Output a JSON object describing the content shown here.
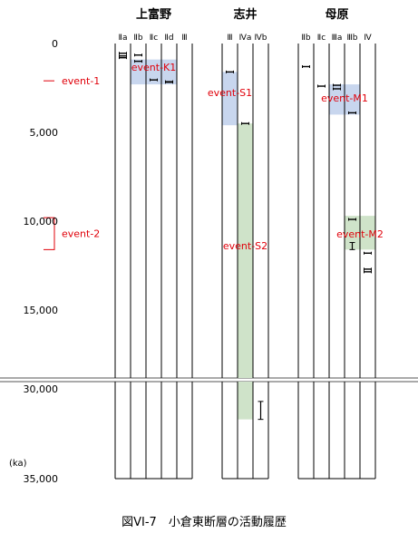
{
  "chart_data": {
    "type": "interval",
    "caption": "図VI-7　小倉東断層の活動履歴",
    "y_unit_label": "(ka)",
    "y_ticks_upper": [
      "0",
      "5,000",
      "10,000",
      "15,000"
    ],
    "y_ticks_lower": [
      "30,000",
      "35,000"
    ],
    "y_tick_values_upper": [
      0,
      5000,
      10000,
      15000
    ],
    "y_tick_values_lower": [
      30000,
      35000
    ],
    "axis_break": {
      "from": 19000,
      "to": 29000
    },
    "sites": [
      {
        "name": "上富野",
        "columns": [
          "Ⅱa",
          "Ⅱb",
          "Ⅱc",
          "Ⅱd",
          "Ⅲ"
        ]
      },
      {
        "name": "志井",
        "columns": [
          "Ⅲ",
          "Ⅳa",
          "Ⅳb"
        ]
      },
      {
        "name": "母原",
        "columns": [
          "Ⅱb",
          "Ⅱc",
          "Ⅲa",
          "Ⅲb",
          "Ⅳ"
        ]
      }
    ],
    "events": [
      {
        "label": "event-1",
        "range": [
          2100,
          2100
        ]
      },
      {
        "label": "event-2",
        "range": [
          9800,
          11600
        ]
      }
    ],
    "event_boxes": [
      {
        "label": "event-K1",
        "site": 0,
        "col_from": 1,
        "col_to": 4,
        "range": [
          900,
          2300
        ],
        "color": "#c8d6ee"
      },
      {
        "label": "event-S1",
        "site": 1,
        "col_from": 0,
        "col_to": 1,
        "range": [
          1600,
          4600
        ],
        "color": "#c8d6ee"
      },
      {
        "label": "event-S2",
        "site": 1,
        "col_from": 1,
        "col_to": 2,
        "range": [
          4500,
          31700
        ],
        "color": "#cfe3c9"
      },
      {
        "label": "event-M1",
        "site": 2,
        "col_from": 2,
        "col_to": 4,
        "range": [
          2300,
          4000
        ],
        "color": "#c8d6ee"
      },
      {
        "label": "event-M2",
        "site": 2,
        "col_from": 3,
        "col_to": 5,
        "range": [
          9700,
          11600
        ],
        "color": "#cfe3c9"
      }
    ],
    "dates": [
      {
        "site": 0,
        "col": 0,
        "age": 550
      },
      {
        "site": 0,
        "col": 0,
        "age": 700
      },
      {
        "site": 0,
        "col": 0,
        "age": 800
      },
      {
        "site": 0,
        "col": 1,
        "age": 650
      },
      {
        "site": 0,
        "col": 1,
        "age": 1000
      },
      {
        "site": 0,
        "col": 2,
        "age": 2050
      },
      {
        "site": 0,
        "col": 3,
        "age": 2150
      },
      {
        "site": 0,
        "col": 3,
        "age": 2180
      },
      {
        "site": 1,
        "col": 0,
        "age": 1600
      },
      {
        "site": 1,
        "col": 1,
        "age": 4500
      },
      {
        "site": 1,
        "col": 2,
        "age": 31200,
        "err": 500
      },
      {
        "site": 2,
        "col": 0,
        "age": 1300
      },
      {
        "site": 2,
        "col": 1,
        "age": 2400
      },
      {
        "site": 2,
        "col": 2,
        "age": 2350
      },
      {
        "site": 2,
        "col": 2,
        "age": 2550
      },
      {
        "site": 2,
        "col": 3,
        "age": 3900
      },
      {
        "site": 2,
        "col": 3,
        "age": 9900
      },
      {
        "site": 2,
        "col": 3,
        "age": 11400,
        "err": 200
      },
      {
        "site": 2,
        "col": 4,
        "age": 11800
      },
      {
        "site": 2,
        "col": 4,
        "age": 12700
      },
      {
        "site": 2,
        "col": 4,
        "age": 12850
      }
    ]
  }
}
